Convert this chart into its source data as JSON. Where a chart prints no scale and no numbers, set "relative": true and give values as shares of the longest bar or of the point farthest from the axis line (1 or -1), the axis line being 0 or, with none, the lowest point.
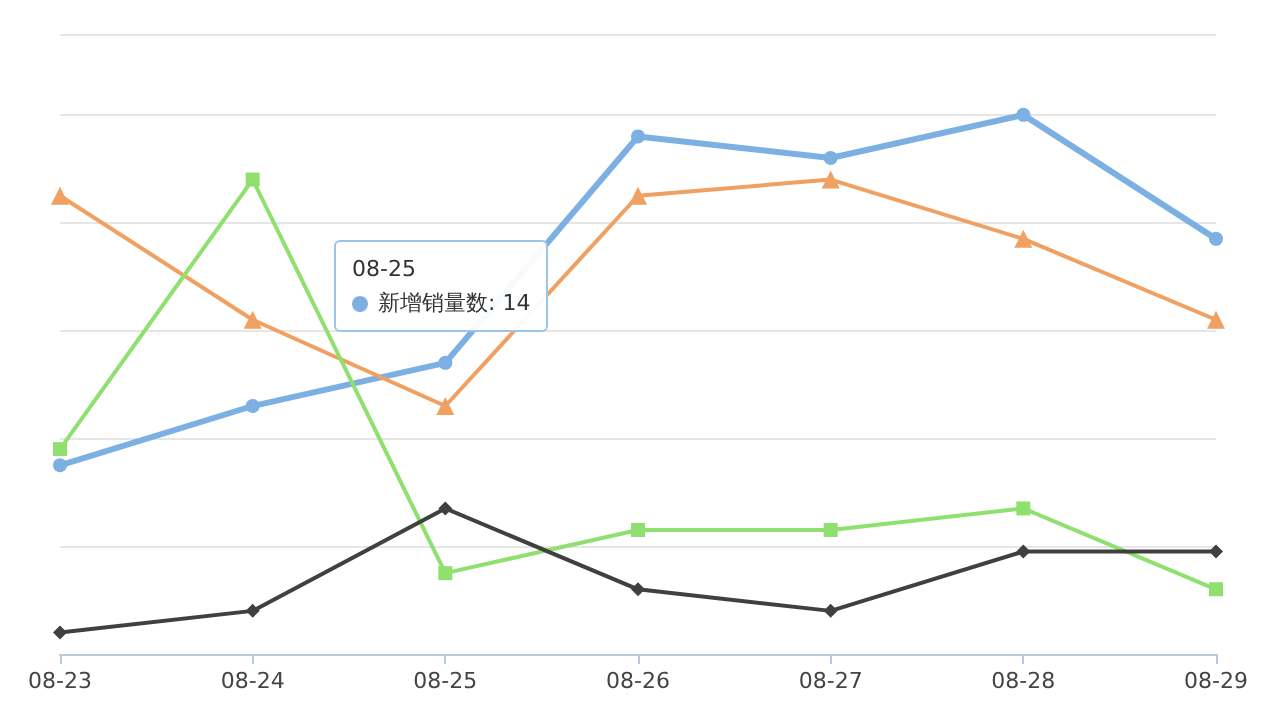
{
  "chart_data": {
    "type": "line",
    "categories": [
      "08-23",
      "08-24",
      "08-25",
      "08-26",
      "08-27",
      "08-28",
      "08-29"
    ],
    "series": [
      {
        "color": "#7cb0e3",
        "marker": "circle",
        "values": [
          0.35,
          0.46,
          0.54,
          0.96,
          0.92,
          1,
          0.77
        ]
      },
      {
        "color": "#f0a060",
        "marker": "triangle",
        "values": [
          0.85,
          0.62,
          0.46,
          0.85,
          0.88,
          0.77,
          0.62
        ]
      },
      {
        "color": "#90e070",
        "marker": "square",
        "values": [
          0.38,
          0.88,
          0.15,
          0.23,
          0.23,
          0.27,
          0.12
        ]
      },
      {
        "color": "#404040",
        "marker": "diamond",
        "values": [
          0.04,
          0.08,
          0.27,
          0.12,
          0.08,
          0.19,
          0.19
        ]
      }
    ],
    "annotations": [
      "08-25",
      "新增销量数: 14"
    ],
    "relative": true,
    "grid": "y"
  }
}
